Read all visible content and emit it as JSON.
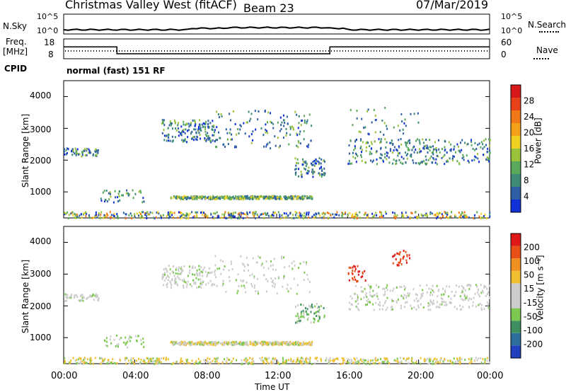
{
  "header": {
    "station": "Christmas Valley West (fitACF)",
    "beam": "Beam 23",
    "date": "07/Mar/2019"
  },
  "top_panels": {
    "nsky_label": "N.Sky",
    "nsky_ticks": [
      "10^5",
      "10^0"
    ],
    "nsearch_label": "N.Search",
    "nsearch_ticks": [
      "10^5",
      "10^0"
    ],
    "freq_label": "Freq.",
    "freq_unit": "[MHz]",
    "freq_ticks": [
      "18",
      "8"
    ],
    "nave_label": "Nave",
    "nave_ticks": [
      "60",
      "0"
    ],
    "cpid_label": "CPID",
    "cpid_value": "normal (fast) 151 RF"
  },
  "chart_data": [
    {
      "type": "heatmap",
      "name": "power-panel",
      "ylabel": "Slant Range [km]",
      "yticks": [
        "1000",
        "2000",
        "3000",
        "4000"
      ],
      "ylim": [
        180,
        4500
      ],
      "xlim": [
        0,
        24
      ],
      "colorbar": {
        "label": "Power [dB]",
        "ticks": [
          "4",
          "8",
          "12",
          "16",
          "20",
          "24",
          "28"
        ],
        "colors": [
          "#1030d8",
          "#2e5fa3",
          "#3d8a77",
          "#5aa85a",
          "#9ac23a",
          "#f0d020",
          "#f4a018",
          "#f07818",
          "#e84018",
          "#d81818"
        ]
      }
    },
    {
      "type": "heatmap",
      "name": "velocity-panel",
      "ylabel": "Slant Range [km]",
      "yticks": [
        "1000",
        "2000",
        "3000",
        "4000"
      ],
      "ylim": [
        180,
        4500
      ],
      "xlim": [
        0,
        24
      ],
      "colorbar": {
        "label": "Velocity [m s⁻¹]",
        "ticks": [
          "200",
          "100",
          "50",
          "15",
          "-15",
          "-50",
          "-100",
          "-200"
        ],
        "colors": [
          "#2040c0",
          "#2f6fa0",
          "#3e9060",
          "#7cc850",
          "#cccccc",
          "#cccccc",
          "#f0c030",
          "#f09020",
          "#e85018",
          "#e01818"
        ]
      }
    }
  ],
  "x_axis": {
    "ticks": [
      "00:00",
      "04:00",
      "08:00",
      "12:00",
      "16:00",
      "20:00",
      "00:00"
    ],
    "label": "Time UT"
  }
}
